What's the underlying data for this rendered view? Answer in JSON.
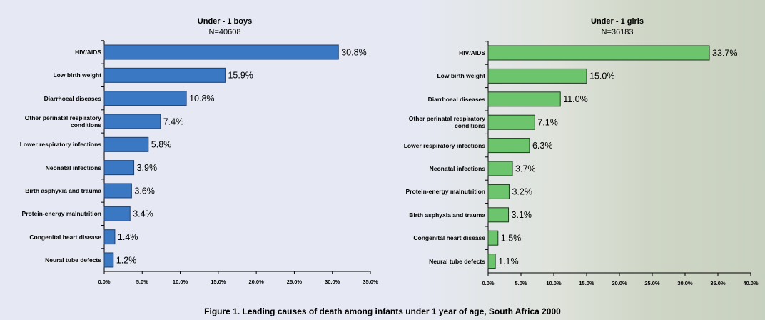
{
  "chart_data": [
    {
      "type": "barh",
      "title": "Under - 1 boys",
      "subtitle": "N=40608",
      "color": "#3a78c4",
      "edge": "#1f3f6e",
      "categories": [
        "HIV/AIDS",
        "Low birth weight",
        "Diarrhoeal diseases",
        "Other perinatal respiratory conditions",
        "Lower respiratory infections",
        "Neonatal infections",
        "Birth asphyxia and trauma",
        "Protein-energy malnutrition",
        "Congenital heart disease",
        "Neural tube defects"
      ],
      "values": [
        30.8,
        15.9,
        10.8,
        7.4,
        5.8,
        3.9,
        3.6,
        3.4,
        1.4,
        1.2
      ],
      "value_labels": [
        "30.8%",
        "15.9%",
        "10.8%",
        "7.4%",
        "5.8%",
        "3.9%",
        "3.6%",
        "3.4%",
        "1.4%",
        "1.2%"
      ],
      "xlim": [
        0,
        35
      ],
      "xticks": [
        {
          "value": 0,
          "label": "0.0%"
        },
        {
          "value": 5,
          "label": "5.0%"
        },
        {
          "value": 10,
          "label": "10.0%"
        },
        {
          "value": 15,
          "label": "15.0%"
        },
        {
          "value": 20,
          "label": "20.0%"
        },
        {
          "value": 25,
          "label": "25.0%"
        },
        {
          "value": 30,
          "label": "30.0%"
        },
        {
          "value": 35,
          "label": "35.0%"
        }
      ]
    },
    {
      "type": "barh",
      "title": "Under - 1 girls",
      "subtitle": "N=36183",
      "color": "#6cc46c",
      "edge": "#1e3a1e",
      "categories": [
        "HIV/AIDS",
        "Low birth weight",
        "Diarrhoeal diseases",
        "Other perinatal respiratory conditions",
        "Lower respiratory infections",
        "Neonatal infections",
        "Protein-energy malnutrition",
        "Birth asphyxia and trauma",
        "Congenital heart disease",
        "Neural tube defects"
      ],
      "values": [
        33.7,
        15.0,
        11.0,
        7.1,
        6.3,
        3.7,
        3.2,
        3.1,
        1.5,
        1.1
      ],
      "value_labels": [
        "33.7%",
        "15.0%",
        "11.0%",
        "7.1%",
        "6.3%",
        "3.7%",
        "3.2%",
        "3.1%",
        "1.5%",
        "1.1%"
      ],
      "xlim": [
        0,
        40
      ],
      "xticks": [
        {
          "value": 0,
          "label": "0.0%"
        },
        {
          "value": 5,
          "label": "5.0%"
        },
        {
          "value": 10,
          "label": "10.0%"
        },
        {
          "value": 15,
          "label": "15.0%"
        },
        {
          "value": 20,
          "label": "20.0%"
        },
        {
          "value": 25,
          "label": "25.0%"
        },
        {
          "value": 30,
          "label": "30.0%"
        },
        {
          "value": 35,
          "label": "35.0%"
        },
        {
          "value": 40,
          "label": "40.0%"
        }
      ]
    }
  ],
  "figure_caption": "Figure 1. Leading causes of death among infants under 1 year of age, South Africa 2000"
}
